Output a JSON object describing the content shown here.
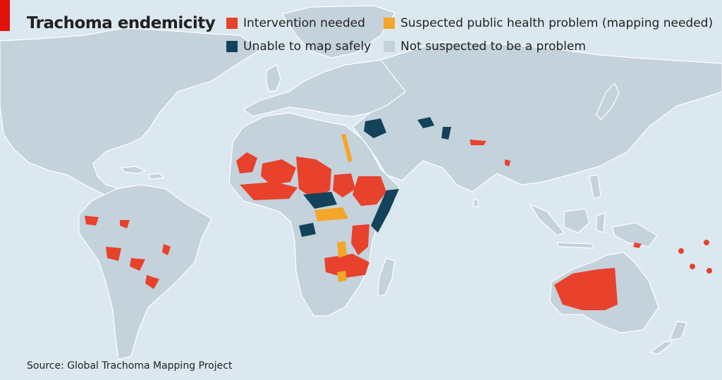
{
  "title": "Trachoma endemicity",
  "legend": [
    {
      "label": "Intervention needed",
      "color": "#e8412c"
    },
    {
      "label": "Suspected public health problem (mapping needed)",
      "color": "#f4a62a"
    },
    {
      "label": "Unable to map safely",
      "color": "#13435a"
    },
    {
      "label": "Not suspected to be a problem",
      "color": "#c4d2dc"
    }
  ],
  "source": "Source: Global Trachoma Mapping Project",
  "colors": {
    "ocean": "#dbe8ef",
    "land": "#c4d2dc",
    "accent_bar": "#e3120b"
  }
}
